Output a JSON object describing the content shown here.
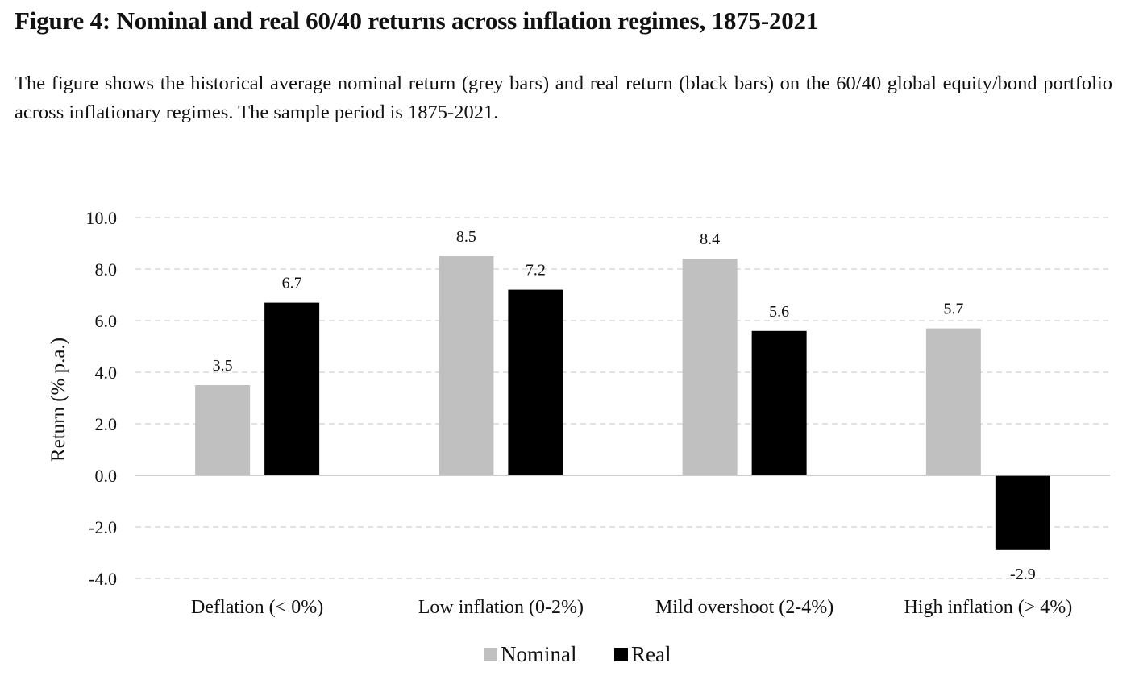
{
  "figure": {
    "title": "Figure 4: Nominal and real 60/40 returns across inflation regimes, 1875-2021",
    "caption": "The figure shows the historical average nominal return (grey bars) and real return (black bars) on the 60/40 global equity/bond portfolio across inflationary regimes. The sample period is 1875-2021."
  },
  "chart_data": {
    "type": "bar",
    "title": "",
    "xlabel": "",
    "ylabel": "Return (% p.a.)",
    "categories": [
      "Deflation (< 0%)",
      "Low inflation (0-2%)",
      "Mild overshoot (2-4%)",
      "High inflation (> 4%)"
    ],
    "series": [
      {
        "name": "Nominal",
        "values": [
          3.5,
          8.5,
          8.4,
          5.7
        ],
        "labels": [
          "3.5",
          "8.5",
          "8.4",
          "5.7"
        ],
        "color": "#c0c0c0"
      },
      {
        "name": "Real",
        "values": [
          6.7,
          7.2,
          5.6,
          -2.9
        ],
        "labels": [
          "6.7",
          "7.2",
          "5.6",
          "-2.9"
        ],
        "color": "#000000"
      }
    ],
    "ylim": [
      -4,
      10
    ],
    "yticks": [
      -4,
      -2,
      0,
      2,
      4,
      6,
      8,
      10
    ],
    "ytick_labels": [
      "-4.0",
      "-2.0",
      "0.0",
      "2.0",
      "4.0",
      "6.0",
      "8.0",
      "10.0"
    ],
    "grid": "horizontal dashed",
    "legend": "bottom-center"
  }
}
